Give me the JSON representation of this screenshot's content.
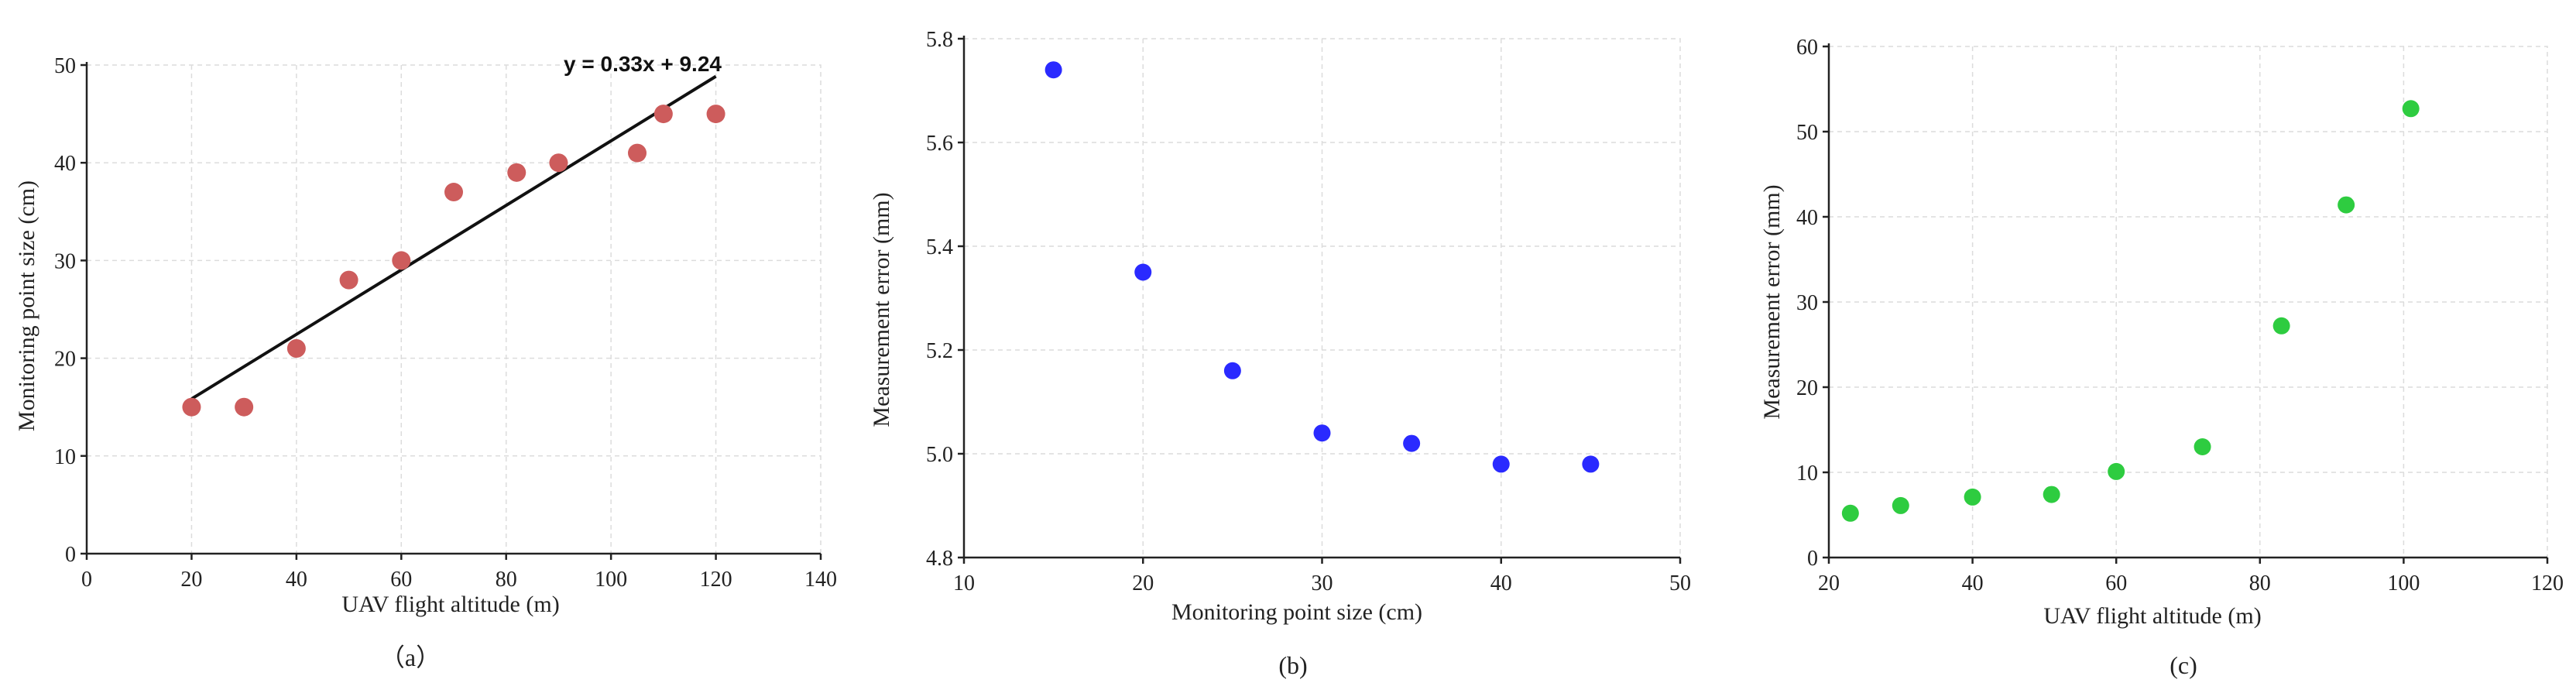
{
  "chart_data": [
    {
      "type": "scatter",
      "panel_label": "（a）",
      "xlabel": "UAV flight altitude (m)",
      "ylabel": "Monitoring point size (cm)",
      "xlim": [
        0,
        140
      ],
      "ylim": [
        0,
        50
      ],
      "xticks": [
        "0",
        "20",
        "40",
        "60",
        "80",
        "100",
        "120",
        "140"
      ],
      "yticks": [
        "0",
        "10",
        "20",
        "30",
        "40",
        "50"
      ],
      "grid": true,
      "marker_color": "#cd5c5c",
      "series": [
        {
          "x": [
            20,
            30,
            40,
            50,
            60,
            70,
            82,
            90,
            105,
            110,
            120
          ],
          "y": [
            15,
            15,
            21,
            28,
            30,
            37,
            39,
            40,
            41,
            45,
            45
          ]
        }
      ],
      "trendline": {
        "slope": 0.33,
        "intercept": 9.24,
        "x_range": [
          20,
          120
        ],
        "color": "#111111"
      },
      "annotation": "y = 0.33x + 9.24"
    },
    {
      "type": "scatter",
      "panel_label": "(b)",
      "xlabel": "Monitoring point size (cm)",
      "ylabel": "Measurement error (mm)",
      "xlim": [
        10,
        50
      ],
      "ylim": [
        4.8,
        5.8
      ],
      "xticks": [
        "10",
        "20",
        "30",
        "40",
        "50"
      ],
      "yticks": [
        "4.8",
        "5.0",
        "5.2",
        "5.4",
        "5.6",
        "5.8"
      ],
      "grid": true,
      "marker_color": "#2a2aff",
      "series": [
        {
          "x": [
            15,
            20,
            25,
            30,
            35,
            40,
            45
          ],
          "y": [
            5.74,
            5.35,
            5.16,
            5.04,
            5.02,
            4.98,
            4.98
          ]
        }
      ]
    },
    {
      "type": "scatter",
      "panel_label": "(c)",
      "xlabel": "UAV flight altitude (m)",
      "ylabel": "Measurement error (mm)",
      "xlim": [
        20,
        120
      ],
      "ylim": [
        0,
        60
      ],
      "xticks": [
        "20",
        "40",
        "60",
        "80",
        "100",
        "120"
      ],
      "yticks": [
        "0",
        "10",
        "20",
        "30",
        "40",
        "50",
        "60"
      ],
      "grid": true,
      "marker_color": "#2ecc40",
      "series": [
        {
          "x": [
            23,
            30,
            40,
            51,
            60,
            72,
            83,
            92,
            101
          ],
          "y": [
            5.2,
            6.1,
            7.1,
            7.4,
            10.1,
            13,
            27.2,
            41.4,
            52.7
          ]
        }
      ]
    }
  ]
}
